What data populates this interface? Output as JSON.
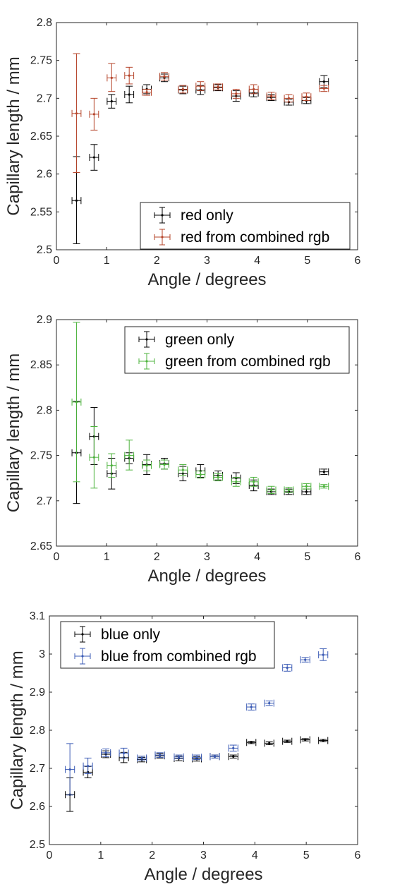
{
  "chart_data": [
    {
      "type": "scatter",
      "title": "",
      "xlabel": "Angle / degrees",
      "ylabel": "Capillary length / mm",
      "xlim": [
        0,
        6
      ],
      "ylim": [
        2.5,
        2.8
      ],
      "xticks": [
        "0",
        "1",
        "2",
        "3",
        "4",
        "5",
        "6"
      ],
      "yticks": [
        "2.5",
        "2.55",
        "2.6",
        "2.65",
        "2.7",
        "2.75",
        "2.8"
      ],
      "legend_position": "bottom-right",
      "grid": false,
      "series": [
        {
          "name": "red only",
          "color": "#000000",
          "points": [
            {
              "x": 0.4,
              "y": 2.565,
              "ylo": 2.508,
              "yhi": 2.623,
              "xerr": 0.09
            },
            {
              "x": 0.75,
              "y": 2.622,
              "ylo": 2.605,
              "yhi": 2.639,
              "xerr": 0.09
            },
            {
              "x": 1.1,
              "y": 2.696,
              "ylo": 2.687,
              "yhi": 2.705,
              "xerr": 0.09
            },
            {
              "x": 1.45,
              "y": 2.705,
              "ylo": 2.694,
              "yhi": 2.716,
              "xerr": 0.09
            },
            {
              "x": 1.8,
              "y": 2.712,
              "ylo": 2.706,
              "yhi": 2.718,
              "xerr": 0.09
            },
            {
              "x": 2.15,
              "y": 2.727,
              "ylo": 2.722,
              "yhi": 2.732,
              "xerr": 0.09
            },
            {
              "x": 2.52,
              "y": 2.711,
              "ylo": 2.706,
              "yhi": 2.716,
              "xerr": 0.09
            },
            {
              "x": 2.87,
              "y": 2.711,
              "ylo": 2.705,
              "yhi": 2.717,
              "xerr": 0.09
            },
            {
              "x": 3.22,
              "y": 2.714,
              "ylo": 2.71,
              "yhi": 2.718,
              "xerr": 0.09
            },
            {
              "x": 3.58,
              "y": 2.703,
              "ylo": 2.696,
              "yhi": 2.71,
              "xerr": 0.09
            },
            {
              "x": 3.93,
              "y": 2.707,
              "ylo": 2.702,
              "yhi": 2.712,
              "xerr": 0.09
            },
            {
              "x": 4.28,
              "y": 2.701,
              "ylo": 2.697,
              "yhi": 2.705,
              "xerr": 0.09
            },
            {
              "x": 4.63,
              "y": 2.695,
              "ylo": 2.691,
              "yhi": 2.699,
              "xerr": 0.09
            },
            {
              "x": 4.98,
              "y": 2.697,
              "ylo": 2.693,
              "yhi": 2.701,
              "xerr": 0.09
            },
            {
              "x": 5.33,
              "y": 2.722,
              "ylo": 2.714,
              "yhi": 2.73,
              "xerr": 0.09
            }
          ]
        },
        {
          "name": "red from combined rgb",
          "color": "#b5442a",
          "points": [
            {
              "x": 0.4,
              "y": 2.68,
              "ylo": 2.602,
              "yhi": 2.759,
              "xerr": 0.09
            },
            {
              "x": 0.75,
              "y": 2.679,
              "ylo": 2.658,
              "yhi": 2.7,
              "xerr": 0.09
            },
            {
              "x": 1.1,
              "y": 2.727,
              "ylo": 2.709,
              "yhi": 2.746,
              "xerr": 0.09
            },
            {
              "x": 1.45,
              "y": 2.73,
              "ylo": 2.719,
              "yhi": 2.741,
              "xerr": 0.09
            },
            {
              "x": 1.8,
              "y": 2.708,
              "ylo": 2.704,
              "yhi": 2.712,
              "xerr": 0.09
            },
            {
              "x": 2.15,
              "y": 2.729,
              "ylo": 2.724,
              "yhi": 2.734,
              "xerr": 0.09
            },
            {
              "x": 2.52,
              "y": 2.712,
              "ylo": 2.707,
              "yhi": 2.717,
              "xerr": 0.09
            },
            {
              "x": 2.87,
              "y": 2.716,
              "ylo": 2.71,
              "yhi": 2.722,
              "xerr": 0.09
            },
            {
              "x": 3.22,
              "y": 2.715,
              "ylo": 2.711,
              "yhi": 2.719,
              "xerr": 0.09
            },
            {
              "x": 3.58,
              "y": 2.706,
              "ylo": 2.7,
              "yhi": 2.712,
              "xerr": 0.09
            },
            {
              "x": 3.93,
              "y": 2.712,
              "ylo": 2.706,
              "yhi": 2.718,
              "xerr": 0.09
            },
            {
              "x": 4.28,
              "y": 2.703,
              "ylo": 2.698,
              "yhi": 2.708,
              "xerr": 0.09
            },
            {
              "x": 4.63,
              "y": 2.7,
              "ylo": 2.695,
              "yhi": 2.705,
              "xerr": 0.09
            },
            {
              "x": 4.98,
              "y": 2.702,
              "ylo": 2.697,
              "yhi": 2.707,
              "xerr": 0.09
            },
            {
              "x": 5.33,
              "y": 2.713,
              "ylo": 2.709,
              "yhi": 2.717,
              "xerr": 0.09
            }
          ]
        }
      ]
    },
    {
      "type": "scatter",
      "title": "",
      "xlabel": "Angle / degrees",
      "ylabel": "Capillary length / mm",
      "xlim": [
        0,
        6
      ],
      "ylim": [
        2.65,
        2.9
      ],
      "xticks": [
        "0",
        "1",
        "2",
        "3",
        "4",
        "5",
        "6"
      ],
      "yticks": [
        "2.65",
        "2.7",
        "2.75",
        "2.8",
        "2.85",
        "2.9"
      ],
      "legend_position": "top-right",
      "grid": false,
      "series": [
        {
          "name": "green only",
          "color": "#000000",
          "points": [
            {
              "x": 0.4,
              "y": 2.753,
              "ylo": 2.697,
              "yhi": 2.81,
              "xerr": 0.09
            },
            {
              "x": 0.75,
              "y": 2.771,
              "ylo": 2.74,
              "yhi": 2.803,
              "xerr": 0.09
            },
            {
              "x": 1.1,
              "y": 2.73,
              "ylo": 2.713,
              "yhi": 2.747,
              "xerr": 0.09
            },
            {
              "x": 1.45,
              "y": 2.747,
              "ylo": 2.741,
              "yhi": 2.753,
              "xerr": 0.09
            },
            {
              "x": 1.8,
              "y": 2.74,
              "ylo": 2.729,
              "yhi": 2.751,
              "xerr": 0.09
            },
            {
              "x": 2.15,
              "y": 2.741,
              "ylo": 2.735,
              "yhi": 2.747,
              "xerr": 0.09
            },
            {
              "x": 2.52,
              "y": 2.73,
              "ylo": 2.722,
              "yhi": 2.738,
              "xerr": 0.09
            },
            {
              "x": 2.87,
              "y": 2.733,
              "ylo": 2.726,
              "yhi": 2.74,
              "xerr": 0.09
            },
            {
              "x": 3.22,
              "y": 2.728,
              "ylo": 2.723,
              "yhi": 2.733,
              "xerr": 0.09
            },
            {
              "x": 3.58,
              "y": 2.725,
              "ylo": 2.719,
              "yhi": 2.731,
              "xerr": 0.09
            },
            {
              "x": 3.93,
              "y": 2.717,
              "ylo": 2.711,
              "yhi": 2.723,
              "xerr": 0.09
            },
            {
              "x": 4.28,
              "y": 2.71,
              "ylo": 2.707,
              "yhi": 2.713,
              "xerr": 0.09
            },
            {
              "x": 4.63,
              "y": 2.71,
              "ylo": 2.707,
              "yhi": 2.713,
              "xerr": 0.09
            },
            {
              "x": 4.98,
              "y": 2.71,
              "ylo": 2.707,
              "yhi": 2.713,
              "xerr": 0.09
            },
            {
              "x": 5.33,
              "y": 2.732,
              "ylo": 2.729,
              "yhi": 2.735,
              "xerr": 0.09
            }
          ]
        },
        {
          "name": "green from combined rgb",
          "color": "#4db33d",
          "points": [
            {
              "x": 0.4,
              "y": 2.809,
              "ylo": 2.721,
              "yhi": 2.897,
              "xerr": 0.09
            },
            {
              "x": 0.75,
              "y": 2.748,
              "ylo": 2.714,
              "yhi": 2.782,
              "xerr": 0.09
            },
            {
              "x": 1.1,
              "y": 2.739,
              "ylo": 2.726,
              "yhi": 2.752,
              "xerr": 0.09
            },
            {
              "x": 1.45,
              "y": 2.75,
              "ylo": 2.734,
              "yhi": 2.767,
              "xerr": 0.09
            },
            {
              "x": 1.8,
              "y": 2.739,
              "ylo": 2.733,
              "yhi": 2.745,
              "xerr": 0.09
            },
            {
              "x": 2.15,
              "y": 2.74,
              "ylo": 2.735,
              "yhi": 2.745,
              "xerr": 0.09
            },
            {
              "x": 2.52,
              "y": 2.734,
              "ylo": 2.728,
              "yhi": 2.74,
              "xerr": 0.09
            },
            {
              "x": 2.87,
              "y": 2.729,
              "ylo": 2.725,
              "yhi": 2.733,
              "xerr": 0.09
            },
            {
              "x": 3.22,
              "y": 2.726,
              "ylo": 2.722,
              "yhi": 2.73,
              "xerr": 0.09
            },
            {
              "x": 3.58,
              "y": 2.721,
              "ylo": 2.716,
              "yhi": 2.726,
              "xerr": 0.09
            },
            {
              "x": 3.93,
              "y": 2.721,
              "ylo": 2.716,
              "yhi": 2.726,
              "xerr": 0.09
            },
            {
              "x": 4.28,
              "y": 2.712,
              "ylo": 2.708,
              "yhi": 2.716,
              "xerr": 0.09
            },
            {
              "x": 4.63,
              "y": 2.712,
              "ylo": 2.709,
              "yhi": 2.715,
              "xerr": 0.09
            },
            {
              "x": 4.98,
              "y": 2.716,
              "ylo": 2.713,
              "yhi": 2.719,
              "xerr": 0.09
            },
            {
              "x": 5.33,
              "y": 2.716,
              "ylo": 2.714,
              "yhi": 2.718,
              "xerr": 0.09
            }
          ]
        }
      ]
    },
    {
      "type": "scatter",
      "title": "",
      "xlabel": "Angle / degrees",
      "ylabel": "Capillary length / mm",
      "xlim": [
        0,
        6
      ],
      "ylim": [
        2.5,
        3.1
      ],
      "xticks": [
        "0",
        "1",
        "2",
        "3",
        "4",
        "5",
        "6"
      ],
      "yticks": [
        "2.5",
        "2.6",
        "2.7",
        "2.8",
        "2.9",
        "3",
        "3.1"
      ],
      "legend_position": "top-left",
      "grid": false,
      "series": [
        {
          "name": "blue only",
          "color": "#000000",
          "points": [
            {
              "x": 0.4,
              "y": 2.631,
              "ylo": 2.587,
              "yhi": 2.675,
              "xerr": 0.09
            },
            {
              "x": 0.75,
              "y": 2.69,
              "ylo": 2.675,
              "yhi": 2.705,
              "xerr": 0.09
            },
            {
              "x": 1.1,
              "y": 2.737,
              "ylo": 2.728,
              "yhi": 2.746,
              "xerr": 0.09
            },
            {
              "x": 1.45,
              "y": 2.728,
              "ylo": 2.715,
              "yhi": 2.742,
              "xerr": 0.09
            },
            {
              "x": 1.8,
              "y": 2.723,
              "ylo": 2.717,
              "yhi": 2.729,
              "xerr": 0.09
            },
            {
              "x": 2.15,
              "y": 2.733,
              "ylo": 2.727,
              "yhi": 2.739,
              "xerr": 0.09
            },
            {
              "x": 2.52,
              "y": 2.726,
              "ylo": 2.72,
              "yhi": 2.732,
              "xerr": 0.09
            },
            {
              "x": 2.87,
              "y": 2.725,
              "ylo": 2.719,
              "yhi": 2.731,
              "xerr": 0.09
            },
            {
              "x": 3.22,
              "y": 2.731,
              "ylo": 2.727,
              "yhi": 2.735,
              "xerr": 0.09
            },
            {
              "x": 3.58,
              "y": 2.731,
              "ylo": 2.727,
              "yhi": 2.735,
              "xerr": 0.09
            },
            {
              "x": 3.93,
              "y": 2.768,
              "ylo": 2.765,
              "yhi": 2.771,
              "xerr": 0.09
            },
            {
              "x": 4.28,
              "y": 2.766,
              "ylo": 2.762,
              "yhi": 2.77,
              "xerr": 0.09
            },
            {
              "x": 4.63,
              "y": 2.771,
              "ylo": 2.768,
              "yhi": 2.774,
              "xerr": 0.09
            },
            {
              "x": 4.98,
              "y": 2.775,
              "ylo": 2.772,
              "yhi": 2.778,
              "xerr": 0.09
            },
            {
              "x": 5.33,
              "y": 2.773,
              "ylo": 2.77,
              "yhi": 2.776,
              "xerr": 0.09
            }
          ]
        },
        {
          "name": "blue from combined rgb",
          "color": "#3b5bb5",
          "points": [
            {
              "x": 0.4,
              "y": 2.697,
              "ylo": 2.63,
              "yhi": 2.765,
              "xerr": 0.09
            },
            {
              "x": 0.75,
              "y": 2.706,
              "ylo": 2.686,
              "yhi": 2.727,
              "xerr": 0.09
            },
            {
              "x": 1.1,
              "y": 2.741,
              "ylo": 2.731,
              "yhi": 2.751,
              "xerr": 0.09
            },
            {
              "x": 1.45,
              "y": 2.74,
              "ylo": 2.727,
              "yhi": 2.753,
              "xerr": 0.09
            },
            {
              "x": 1.8,
              "y": 2.727,
              "ylo": 2.722,
              "yhi": 2.732,
              "xerr": 0.09
            },
            {
              "x": 2.15,
              "y": 2.735,
              "ylo": 2.729,
              "yhi": 2.741,
              "xerr": 0.09
            },
            {
              "x": 2.52,
              "y": 2.73,
              "ylo": 2.725,
              "yhi": 2.735,
              "xerr": 0.09
            },
            {
              "x": 2.87,
              "y": 2.729,
              "ylo": 2.723,
              "yhi": 2.735,
              "xerr": 0.09
            },
            {
              "x": 3.22,
              "y": 2.731,
              "ylo": 2.727,
              "yhi": 2.735,
              "xerr": 0.09
            },
            {
              "x": 3.58,
              "y": 2.753,
              "ylo": 2.745,
              "yhi": 2.761,
              "xerr": 0.09
            },
            {
              "x": 3.93,
              "y": 2.861,
              "ylo": 2.853,
              "yhi": 2.869,
              "xerr": 0.09
            },
            {
              "x": 4.28,
              "y": 2.871,
              "ylo": 2.865,
              "yhi": 2.877,
              "xerr": 0.09
            },
            {
              "x": 4.63,
              "y": 2.964,
              "ylo": 2.955,
              "yhi": 2.973,
              "xerr": 0.09
            },
            {
              "x": 4.98,
              "y": 2.985,
              "ylo": 2.979,
              "yhi": 2.991,
              "xerr": 0.09
            },
            {
              "x": 5.33,
              "y": 2.998,
              "ylo": 2.983,
              "yhi": 3.014,
              "xerr": 0.09
            }
          ]
        }
      ]
    }
  ]
}
